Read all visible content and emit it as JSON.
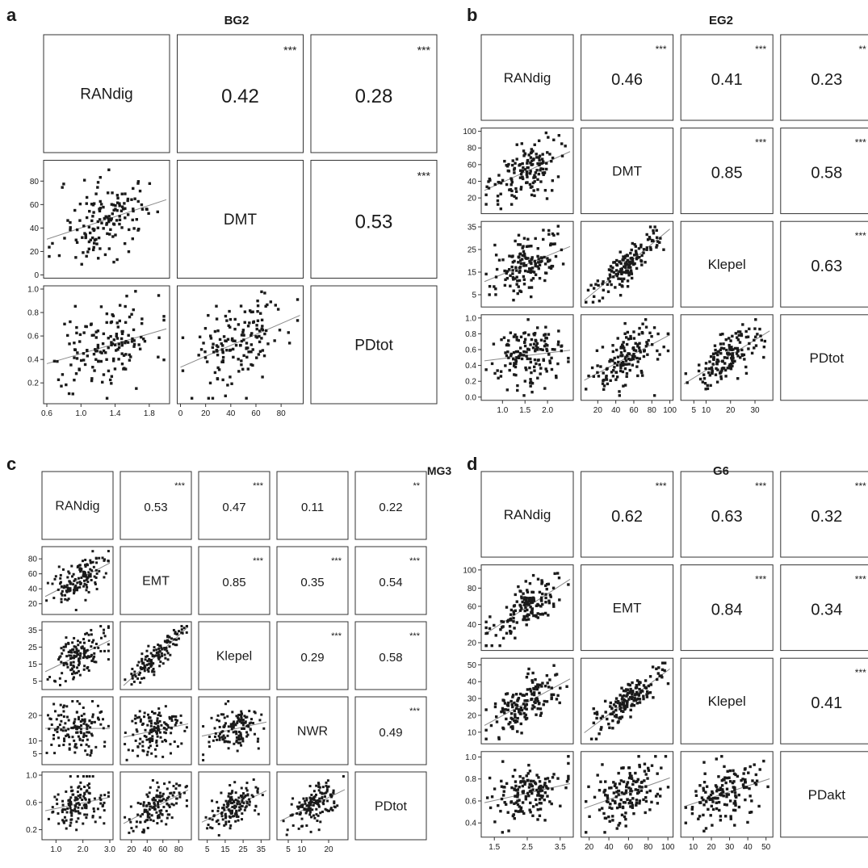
{
  "colors": {
    "ink": "#1a1a1a",
    "frame": "#333333",
    "fit": "#8a8a8a",
    "bg": "#ffffff"
  },
  "chart_data": [
    {
      "type": "scatter",
      "panel_letter": "a",
      "title": "BG2",
      "variables": [
        "RANdig",
        "DMT",
        "PDtot"
      ],
      "tick_labels": [
        [
          "0.6",
          "1.0",
          "1.4",
          "1.8"
        ],
        [
          "0",
          "20",
          "40",
          "60",
          "80"
        ],
        [
          "0.2",
          "0.4",
          "0.6",
          "0.8",
          "1.0"
        ]
      ],
      "y_tick_labels": [
        [],
        [
          "0",
          "20",
          "40",
          "60",
          "80"
        ],
        [
          "0.2",
          "0.4",
          "0.6",
          "0.8",
          "1.0"
        ]
      ],
      "ranges": [
        [
          0.6,
          2.0
        ],
        [
          0,
          95
        ],
        [
          0.05,
          1.0
        ]
      ],
      "correlations": [
        {
          "row": 0,
          "col": 1,
          "r": "0.42",
          "sig": "***"
        },
        {
          "row": 0,
          "col": 2,
          "r": "0.28",
          "sig": "***"
        },
        {
          "row": 1,
          "col": 2,
          "r": "0.53",
          "sig": "***"
        }
      ]
    },
    {
      "type": "scatter",
      "panel_letter": "b",
      "title": "EG2",
      "variables": [
        "RANdig",
        "DMT",
        "Klepel",
        "PDtot"
      ],
      "tick_labels": [
        [
          "1.0",
          "1.5",
          "2.0"
        ],
        [
          "20",
          "40",
          "60",
          "80",
          "100"
        ],
        [
          "5",
          "10",
          "20",
          "30"
        ],
        [
          "0.0",
          "0.2",
          "0.4",
          "0.6",
          "0.8",
          "1.0"
        ]
      ],
      "y_tick_labels": [
        [],
        [
          "20",
          "40",
          "60",
          "80",
          "100"
        ],
        [
          "5",
          "15",
          "25",
          "35"
        ],
        [
          "0.0",
          "0.2",
          "0.4",
          "0.6",
          "0.8",
          "1.0"
        ]
      ],
      "ranges": [
        [
          0.6,
          2.5
        ],
        [
          5,
          100
        ],
        [
          1,
          36
        ],
        [
          0,
          1.0
        ]
      ],
      "correlations": [
        {
          "row": 0,
          "col": 1,
          "r": "0.46",
          "sig": "***"
        },
        {
          "row": 0,
          "col": 2,
          "r": "0.41",
          "sig": "***"
        },
        {
          "row": 0,
          "col": 3,
          "r": "0.23",
          "sig": "**"
        },
        {
          "row": 1,
          "col": 2,
          "r": "0.85",
          "sig": "***"
        },
        {
          "row": 1,
          "col": 3,
          "r": "0.58",
          "sig": "***"
        },
        {
          "row": 2,
          "col": 3,
          "r": "0.63",
          "sig": "***"
        }
      ]
    },
    {
      "type": "scatter",
      "panel_letter": "c",
      "title": "MG3",
      "variables": [
        "RANdig",
        "EMT",
        "Klepel",
        "NWR",
        "PDtot"
      ],
      "tick_labels": [
        [
          "1.0",
          "2.0",
          "3.0"
        ],
        [
          "20",
          "40",
          "60",
          "80"
        ],
        [
          "5",
          "15",
          "25",
          "35"
        ],
        [
          "5",
          "10",
          "20"
        ],
        [
          "0.2",
          "0.6",
          "1.0"
        ]
      ],
      "y_tick_labels": [
        [],
        [
          "20",
          "40",
          "60",
          "80"
        ],
        [
          "5",
          "15",
          "25",
          "35"
        ],
        [
          "5",
          "10",
          "20"
        ],
        [
          "0.2",
          "0.6",
          "1.0"
        ]
      ],
      "ranges": [
        [
          0.6,
          3.0
        ],
        [
          10,
          92
        ],
        [
          2,
          38
        ],
        [
          2,
          26
        ],
        [
          0.1,
          1.0
        ]
      ],
      "correlations": [
        {
          "row": 0,
          "col": 1,
          "r": "0.53",
          "sig": "***"
        },
        {
          "row": 0,
          "col": 2,
          "r": "0.47",
          "sig": "***"
        },
        {
          "row": 0,
          "col": 3,
          "r": "0.11",
          "sig": ""
        },
        {
          "row": 0,
          "col": 4,
          "r": "0.22",
          "sig": "**"
        },
        {
          "row": 1,
          "col": 2,
          "r": "0.85",
          "sig": "***"
        },
        {
          "row": 1,
          "col": 3,
          "r": "0.35",
          "sig": "***"
        },
        {
          "row": 1,
          "col": 4,
          "r": "0.54",
          "sig": "***"
        },
        {
          "row": 2,
          "col": 3,
          "r": "0.29",
          "sig": "***"
        },
        {
          "row": 2,
          "col": 4,
          "r": "0.58",
          "sig": "***"
        },
        {
          "row": 3,
          "col": 4,
          "r": "0.49",
          "sig": "***"
        }
      ]
    },
    {
      "type": "scatter",
      "panel_letter": "d",
      "title": "G6",
      "variables": [
        "RANdig",
        "EMT",
        "Klepel",
        "PDakt"
      ],
      "tick_labels": [
        [
          "1.5",
          "2.5",
          "3.5"
        ],
        [
          "20",
          "40",
          "60",
          "80",
          "100"
        ],
        [
          "10",
          "20",
          "30",
          "40",
          "50"
        ],
        [
          "0.4",
          "0.6",
          "0.8",
          "1.0"
        ]
      ],
      "y_tick_labels": [
        [],
        [
          "20",
          "40",
          "60",
          "80",
          "100"
        ],
        [
          "10",
          "20",
          "30",
          "40",
          "50"
        ],
        [
          "0.4",
          "0.6",
          "0.8",
          "1.0"
        ]
      ],
      "ranges": [
        [
          1.2,
          3.8
        ],
        [
          15,
          102
        ],
        [
          5,
          52
        ],
        [
          0.3,
          1.02
        ]
      ],
      "correlations": [
        {
          "row": 0,
          "col": 1,
          "r": "0.62",
          "sig": "***"
        },
        {
          "row": 0,
          "col": 2,
          "r": "0.63",
          "sig": "***"
        },
        {
          "row": 0,
          "col": 3,
          "r": "0.32",
          "sig": "***"
        },
        {
          "row": 1,
          "col": 2,
          "r": "0.84",
          "sig": "***"
        },
        {
          "row": 1,
          "col": 3,
          "r": "0.34",
          "sig": "***"
        },
        {
          "row": 2,
          "col": 3,
          "r": "0.41",
          "sig": "***"
        }
      ]
    }
  ]
}
